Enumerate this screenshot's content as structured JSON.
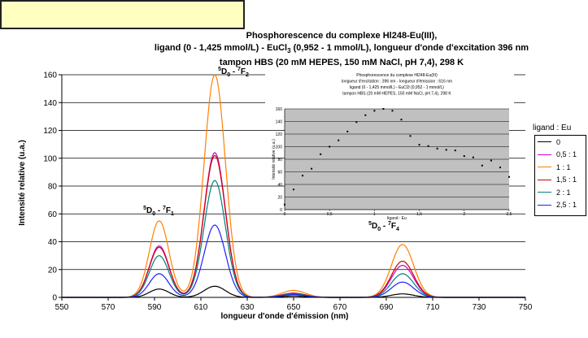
{
  "title": {
    "line1": "Phosphorescence du complexe Hl248-Eu(III),",
    "line2": "ligand (0 - 1,425 mmol/L) - EuCl3 (0,952 - 1 mmol/L), longueur d'onde d'excitation 396 nm",
    "line3": "tampon HBS (20 mM HEPES, 150 mM NaCl, pH 7,4), 298 K"
  },
  "chart_data": [
    {
      "type": "line",
      "xlabel": "longueur d'onde d'émission (nm)",
      "ylabel": "Intensité relative (u.a.)",
      "xlim": [
        550,
        750
      ],
      "ylim": [
        0,
        160
      ],
      "xticks": [
        550,
        570,
        590,
        610,
        630,
        650,
        670,
        690,
        710,
        730,
        750
      ],
      "yticks": [
        0,
        20,
        40,
        60,
        80,
        100,
        120,
        140,
        160
      ],
      "grid": "horizontal",
      "legend_title": "ligand : Eu",
      "legend_position": "right",
      "annotations": [
        {
          "text": "5D0 - 7F1",
          "x": 591,
          "y": 60
        },
        {
          "text": "5D0 - 7F2",
          "x": 616,
          "y": 164
        },
        {
          "text": "5D0 - 7F4",
          "x": 697,
          "y": 46
        }
      ],
      "series": [
        {
          "name": "0",
          "color": "#000000",
          "peaks": [
            [
              592,
              6
            ],
            [
              616,
              8
            ],
            [
              650,
              1
            ],
            [
              697,
              2.5
            ]
          ]
        },
        {
          "name": "0,5 : 1",
          "color": "#cc00cc",
          "peaks": [
            [
              592,
              37
            ],
            [
              616,
              104
            ],
            [
              650,
              3
            ],
            [
              697,
              23
            ]
          ]
        },
        {
          "name": "1 : 1",
          "color": "#ff8000",
          "peaks": [
            [
              592,
              55
            ],
            [
              616,
              160
            ],
            [
              650,
              5
            ],
            [
              697,
              38
            ]
          ]
        },
        {
          "name": "1,5 : 1",
          "color": "#cc0000",
          "peaks": [
            [
              592,
              36
            ],
            [
              616,
              102
            ],
            [
              650,
              3
            ],
            [
              697,
              26
            ]
          ]
        },
        {
          "name": "2 : 1",
          "color": "#008080",
          "peaks": [
            [
              592,
              30
            ],
            [
              616,
              84
            ],
            [
              650,
              2.5
            ],
            [
              697,
              17
            ]
          ]
        },
        {
          "name": "2,5 : 1",
          "color": "#2020ff",
          "peaks": [
            [
              592,
              17
            ],
            [
              616,
              52
            ],
            [
              650,
              2
            ],
            [
              697,
              11
            ]
          ]
        }
      ]
    },
    {
      "type": "scatter",
      "title_lines": [
        "Phosphorescence du complexe Hl248-Eu(III)",
        "longueur d'excitation : 396 nm - longueur d'émission : 616 nm",
        "ligand (0 - 1,425 mmol/L) - EuCl3 (0,952 - 1 mmol/L)",
        "tampon HBS (20 mM HEPES, 150 mM NaCl, pH 7,4), 298 K"
      ],
      "xlabel": "ligand : Eu",
      "ylabel": "Intensité relative (u.a.)",
      "xlim": [
        0,
        2.5
      ],
      "ylim": [
        0,
        160
      ],
      "xticks": [
        "0",
        "0,5",
        "1",
        "1,5",
        "2",
        "2,5"
      ],
      "yticks": [
        0,
        20,
        40,
        60,
        80,
        100,
        120,
        140,
        160
      ],
      "x": [
        0,
        0.1,
        0.2,
        0.3,
        0.4,
        0.5,
        0.6,
        0.7,
        0.8,
        0.9,
        1.0,
        1.1,
        1.2,
        1.3,
        1.4,
        1.5,
        1.6,
        1.7,
        1.8,
        1.9,
        2.0,
        2.1,
        2.2,
        2.3,
        2.4,
        2.5
      ],
      "y": [
        8,
        32,
        54,
        65,
        88,
        100,
        110,
        124,
        139,
        150,
        157,
        160,
        157,
        143,
        117,
        103,
        101,
        97,
        95,
        94,
        85,
        83,
        70,
        78,
        67,
        52
      ]
    }
  ]
}
